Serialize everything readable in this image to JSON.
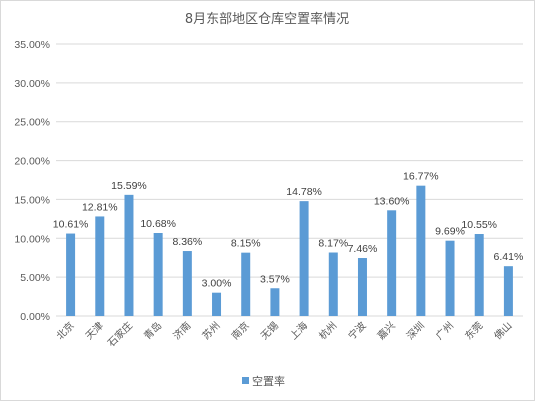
{
  "chart_data": {
    "type": "bar",
    "title": "8月东部地区仓库空置率情况",
    "categories": [
      "北京",
      "天津",
      "石家庄",
      "青岛",
      "济南",
      "苏州",
      "南京",
      "无锡",
      "上海",
      "杭州",
      "宁波",
      "嘉兴",
      "深圳",
      "广州",
      "东莞",
      "佛山"
    ],
    "series": [
      {
        "name": "空置率",
        "values": [
          10.61,
          12.81,
          15.59,
          10.68,
          8.36,
          3.0,
          8.15,
          3.57,
          14.78,
          8.17,
          7.46,
          13.6,
          16.77,
          9.69,
          10.55,
          6.41
        ],
        "labels": [
          "10.61%",
          "12.81%",
          "15.59%",
          "10.68%",
          "8.36%",
          "3.00%",
          "8.15%",
          "3.57%",
          "14.78%",
          "8.17%",
          "7.46%",
          "13.60%",
          "16.77%",
          "9.69%",
          "10.55%",
          "6.41%"
        ]
      }
    ],
    "ylim": [
      0,
      35
    ],
    "yticks": [
      0,
      5,
      10,
      15,
      20,
      25,
      30,
      35
    ],
    "ytick_labels": [
      "0.00%",
      "5.00%",
      "10.00%",
      "15.00%",
      "20.00%",
      "25.00%",
      "30.00%",
      "35.00%"
    ],
    "xlabel": "",
    "ylabel": "",
    "grid": true,
    "legend_position": "bottom",
    "bar_color": "#5b9bd5"
  }
}
